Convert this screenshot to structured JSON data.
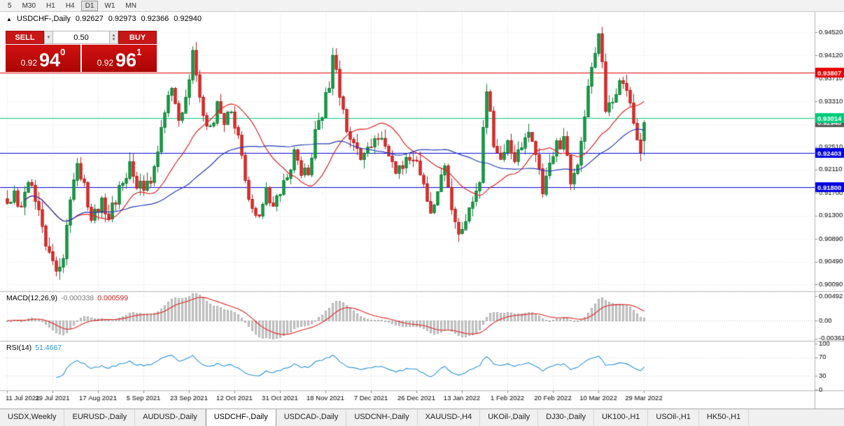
{
  "toolbar": {
    "timeframes": [
      "5",
      "M30",
      "H1",
      "H4",
      "D1",
      "W1",
      "MN"
    ],
    "active_timeframe": "D1"
  },
  "header": {
    "marker": "▲",
    "title": "USDCHF-,Daily",
    "open": "0.92627",
    "high": "0.92973",
    "low": "0.92366",
    "close": "0.92940"
  },
  "trade": {
    "sell_label": "SELL",
    "buy_label": "BUY",
    "volume": "0.50",
    "sell_price_base": "0.92",
    "sell_price_big": "94",
    "sell_price_sup": "0",
    "buy_price_base": "0.92",
    "buy_price_big": "96",
    "buy_price_sup": "1"
  },
  "indicators": {
    "macd": {
      "name": "MACD(12,26,9)",
      "value": "-0.000338",
      "signal": "0.000599"
    },
    "rsi": {
      "name": "RSI(14)",
      "value": "51.4667"
    }
  },
  "price_axis": {
    "ticks": [
      "0.94520",
      "0.94120",
      "0.93710",
      "0.93310",
      "0.92910",
      "0.92510",
      "0.92110",
      "0.91700",
      "0.91300",
      "0.90890",
      "0.90490",
      "0.90090"
    ]
  },
  "macd_axis": {
    "ticks": [
      {
        "label": "0.00492",
        "value": 0.00492
      },
      {
        "label": "0.00",
        "value": 0
      },
      {
        "label": "-0.00361",
        "value": -0.00361
      }
    ]
  },
  "rsi_axis": {
    "ticks": [
      {
        "label": "100",
        "value": 100
      },
      {
        "label": "70",
        "value": 70
      },
      {
        "label": "30",
        "value": 30
      },
      {
        "label": "0",
        "value": 0
      }
    ],
    "levels": [
      70,
      30
    ]
  },
  "time_axis": {
    "labels": [
      {
        "label": "11 Jul 2021",
        "index": 0
      },
      {
        "label": "29 Jul 2021",
        "index": 13
      },
      {
        "label": "17 Aug 2021",
        "index": 26
      },
      {
        "label": "5 Sep 2021",
        "index": 39
      },
      {
        "label": "23 Sep 2021",
        "index": 52
      },
      {
        "label": "12 Oct 2021",
        "index": 65
      },
      {
        "label": "31 Oct 2021",
        "index": 78
      },
      {
        "label": "18 Nov 2021",
        "index": 91
      },
      {
        "label": "7 Dec 2021",
        "index": 104
      },
      {
        "label": "26 Dec 2021",
        "index": 117
      },
      {
        "label": "13 Jan 2022",
        "index": 130
      },
      {
        "label": "1 Feb 2022",
        "index": 143
      },
      {
        "label": "20 Feb 2022",
        "index": 156
      },
      {
        "label": "10 Mar 2022",
        "index": 169
      },
      {
        "label": "29 Mar 2022",
        "index": 182
      }
    ]
  },
  "levels": [
    {
      "label": "0.93807",
      "value": 0.93807,
      "color": "#e60000"
    },
    {
      "label": "0.93014",
      "value": 0.93014,
      "color": "#00cb7c"
    },
    {
      "label": "0.92403",
      "value": 0.92403,
      "color": "#0000e0"
    },
    {
      "label": "0.91800",
      "value": 0.918,
      "color": "#0000e0"
    }
  ],
  "current_price": {
    "label": "0.92940",
    "value": 0.9294,
    "color": "#595959"
  },
  "chart_data": {
    "type": "candlestick",
    "symbol": "USDCHF-",
    "timeframe": "Daily",
    "visible_range": {
      "price_top": 0.9488,
      "price_bottom": 0.8996
    },
    "candle_count": 183,
    "last_candle": {
      "open": 0.92627,
      "high": 0.92973,
      "low": 0.92366,
      "close": 0.9294
    },
    "close_anchors": [
      [
        0,
        0.9152
      ],
      [
        2,
        0.9168
      ],
      [
        4,
        0.9148
      ],
      [
        6,
        0.9195
      ],
      [
        8,
        0.916
      ],
      [
        10,
        0.9105
      ],
      [
        12,
        0.906
      ],
      [
        14,
        0.9038
      ],
      [
        16,
        0.9062
      ],
      [
        18,
        0.915
      ],
      [
        20,
        0.9225
      ],
      [
        22,
        0.918
      ],
      [
        24,
        0.913
      ],
      [
        27,
        0.9152
      ],
      [
        29,
        0.9122
      ],
      [
        31,
        0.916
      ],
      [
        33,
        0.9185
      ],
      [
        35,
        0.923
      ],
      [
        37,
        0.919
      ],
      [
        39,
        0.9176
      ],
      [
        41,
        0.92
      ],
      [
        43,
        0.9252
      ],
      [
        45,
        0.93
      ],
      [
        47,
        0.9362
      ],
      [
        49,
        0.9302
      ],
      [
        51,
        0.933
      ],
      [
        53,
        0.942
      ],
      [
        54,
        0.9372
      ],
      [
        56,
        0.93
      ],
      [
        58,
        0.9282
      ],
      [
        60,
        0.932
      ],
      [
        62,
        0.9292
      ],
      [
        64,
        0.931
      ],
      [
        66,
        0.927
      ],
      [
        68,
        0.92
      ],
      [
        70,
        0.914
      ],
      [
        72,
        0.9125
      ],
      [
        74,
        0.918
      ],
      [
        76,
        0.915
      ],
      [
        78,
        0.9165
      ],
      [
        80,
        0.92
      ],
      [
        82,
        0.9235
      ],
      [
        84,
        0.9205
      ],
      [
        86,
        0.9212
      ],
      [
        88,
        0.927
      ],
      [
        90,
        0.9312
      ],
      [
        92,
        0.936
      ],
      [
        93,
        0.942
      ],
      [
        94,
        0.9395
      ],
      [
        95,
        0.934
      ],
      [
        97,
        0.928
      ],
      [
        99,
        0.9255
      ],
      [
        101,
        0.9225
      ],
      [
        103,
        0.925
      ],
      [
        105,
        0.9272
      ],
      [
        107,
        0.926
      ],
      [
        109,
        0.9235
      ],
      [
        111,
        0.921
      ],
      [
        113,
        0.9205
      ],
      [
        115,
        0.924
      ],
      [
        117,
        0.9235
      ],
      [
        119,
        0.919
      ],
      [
        121,
        0.9125
      ],
      [
        123,
        0.918
      ],
      [
        125,
        0.921
      ],
      [
        127,
        0.914
      ],
      [
        129,
        0.9105
      ],
      [
        131,
        0.912
      ],
      [
        133,
        0.9155
      ],
      [
        135,
        0.9185
      ],
      [
        136,
        0.929
      ],
      [
        137,
        0.936
      ],
      [
        139,
        0.9262
      ],
      [
        141,
        0.924
      ],
      [
        143,
        0.9256
      ],
      [
        145,
        0.9225
      ],
      [
        147,
        0.925
      ],
      [
        149,
        0.9266
      ],
      [
        151,
        0.9235
      ],
      [
        153,
        0.918
      ],
      [
        155,
        0.9226
      ],
      [
        157,
        0.925
      ],
      [
        159,
        0.9262
      ],
      [
        161,
        0.9196
      ],
      [
        163,
        0.9225
      ],
      [
        165,
        0.931
      ],
      [
        167,
        0.939
      ],
      [
        169,
        0.9446
      ],
      [
        170,
        0.9396
      ],
      [
        171,
        0.9312
      ],
      [
        173,
        0.933
      ],
      [
        175,
        0.9376
      ],
      [
        177,
        0.936
      ],
      [
        179,
        0.9292
      ],
      [
        181,
        0.923
      ],
      [
        182,
        0.9294
      ]
    ],
    "overlays": [
      {
        "name": "ma-fast",
        "period": 20,
        "color": "#dd2222"
      },
      {
        "name": "ma-slow",
        "period": 45,
        "color": "#2438b8"
      }
    ]
  },
  "tabs": {
    "items": [
      "USDX,Weekly",
      "EURUSD-,Daily",
      "AUDUSD-,Daily",
      "USDCHF-,Daily",
      "USDCAD-,Daily",
      "USDCNH-,Daily",
      "XAUUSD-,H4",
      "UKOil-,Daily",
      "DJ30-,Daily",
      "UK100-,H1",
      "USOil-,H1",
      "HK50-,H1"
    ],
    "active": "USDCHF-,Daily"
  },
  "colors": {
    "background": "#ffffff",
    "grid_vertical": "#dedede",
    "grid_horizontal": "#ededed",
    "separator": "#b4b4b4",
    "tick": "#8a8a8a",
    "axis_text": "#000000",
    "bull": "#1ba14a",
    "bull_border": "#0e7c36",
    "bear": "#e23333",
    "bear_border": "#bb1d1d",
    "ma_fast": "#dd2222",
    "ma_slow": "#2438b8",
    "macd_hist_fill": "#d6d6d6",
    "macd_hist_border": "#ababab",
    "macd_signal": "#dd2222",
    "rsi_line": "#2e90d8",
    "rsi_level": "#c8c8d8"
  }
}
